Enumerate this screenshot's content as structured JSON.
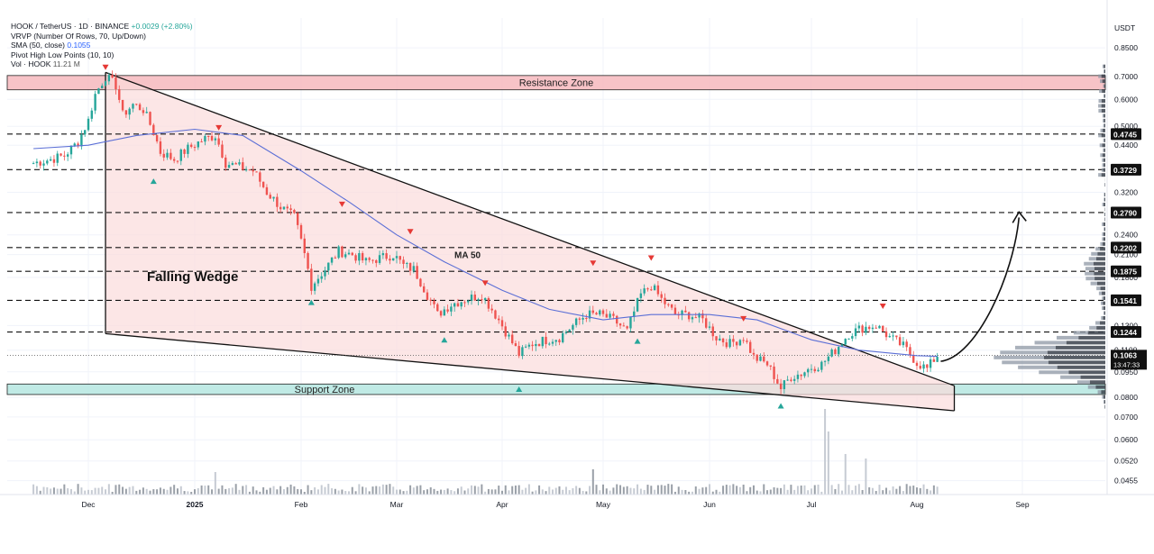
{
  "header": {
    "symbol": "HOOK / TetherUS · 1D · BINANCE",
    "change": "+0.0029 (+2.80%)",
    "vrvp": "VRVP (Number Of Rows, 70, Up/Down)",
    "sma_label": "SMA (50, close)",
    "sma_value": "0.1055",
    "pivot": "Pivot High Low Points (10, 10)",
    "vol_label": "Vol · HOOK",
    "vol_value": "11.21 M",
    "currency": "USDT"
  },
  "chart_data": {
    "type": "line",
    "title": "",
    "pair": "HOOK / TetherUS",
    "interval": "1D",
    "exchange": "BINANCE",
    "y_scale": "log",
    "ylim": [
      0.042,
      0.95
    ],
    "y_ticks": [
      "0.8500",
      "0.7000",
      "0.6000",
      "0.5000",
      "0.4400",
      "0.3200",
      "0.2400",
      "0.2100",
      "0.1800",
      "0.1300",
      "0.1100",
      "0.0950",
      "0.0800",
      "0.0700",
      "0.0600",
      "0.0520",
      "0.0455"
    ],
    "x_ticks": [
      "Dec",
      "2025",
      "Feb",
      "Mar",
      "Apr",
      "May",
      "Jun",
      "Jul",
      "Aug",
      "Sep"
    ],
    "x_range": [
      "2024-11-15",
      "2025-09-25"
    ],
    "price_series": [
      [
        "2024-11-15",
        0.39
      ],
      [
        "2024-11-20",
        0.4
      ],
      [
        "2024-11-24",
        0.41
      ],
      [
        "2024-11-28",
        0.45
      ],
      [
        "2024-12-01",
        0.52
      ],
      [
        "2024-12-03",
        0.62
      ],
      [
        "2024-12-06",
        0.7
      ],
      [
        "2024-12-09",
        0.66
      ],
      [
        "2024-12-11",
        0.54
      ],
      [
        "2024-12-14",
        0.58
      ],
      [
        "2024-12-17",
        0.56
      ],
      [
        "2024-12-20",
        0.48
      ],
      [
        "2024-12-22",
        0.42
      ],
      [
        "2024-12-26",
        0.4
      ],
      [
        "2024-12-30",
        0.43
      ],
      [
        "2025-01-04",
        0.46
      ],
      [
        "2025-01-07",
        0.47
      ],
      [
        "2025-01-10",
        0.39
      ],
      [
        "2025-01-14",
        0.38
      ],
      [
        "2025-01-18",
        0.37
      ],
      [
        "2025-01-22",
        0.32
      ],
      [
        "2025-01-26",
        0.29
      ],
      [
        "2025-01-30",
        0.27
      ],
      [
        "2025-02-02",
        0.21
      ],
      [
        "2025-02-04",
        0.17
      ],
      [
        "2025-02-08",
        0.19
      ],
      [
        "2025-02-12",
        0.215
      ],
      [
        "2025-02-16",
        0.21
      ],
      [
        "2025-02-20",
        0.2
      ],
      [
        "2025-02-24",
        0.205
      ],
      [
        "2025-02-28",
        0.21
      ],
      [
        "2025-03-03",
        0.195
      ],
      [
        "2025-03-06",
        0.19
      ],
      [
        "2025-03-10",
        0.16
      ],
      [
        "2025-03-13",
        0.14
      ],
      [
        "2025-03-17",
        0.15
      ],
      [
        "2025-03-21",
        0.155
      ],
      [
        "2025-03-26",
        0.16
      ],
      [
        "2025-03-30",
        0.14
      ],
      [
        "2025-04-03",
        0.12
      ],
      [
        "2025-04-06",
        0.107
      ],
      [
        "2025-04-10",
        0.115
      ],
      [
        "2025-04-14",
        0.118
      ],
      [
        "2025-04-18",
        0.12
      ],
      [
        "2025-04-22",
        0.13
      ],
      [
        "2025-04-26",
        0.14
      ],
      [
        "2025-04-30",
        0.14
      ],
      [
        "2025-05-04",
        0.135
      ],
      [
        "2025-05-08",
        0.125
      ],
      [
        "2025-05-12",
        0.16
      ],
      [
        "2025-05-15",
        0.17
      ],
      [
        "2025-05-18",
        0.155
      ],
      [
        "2025-05-22",
        0.14
      ],
      [
        "2025-05-26",
        0.14
      ],
      [
        "2025-05-30",
        0.135
      ],
      [
        "2025-06-03",
        0.12
      ],
      [
        "2025-06-07",
        0.115
      ],
      [
        "2025-06-11",
        0.12
      ],
      [
        "2025-06-14",
        0.105
      ],
      [
        "2025-06-18",
        0.1
      ],
      [
        "2025-06-22",
        0.085
      ],
      [
        "2025-06-25",
        0.092
      ],
      [
        "2025-06-28",
        0.094
      ],
      [
        "2025-07-01",
        0.098
      ],
      [
        "2025-07-04",
        0.1
      ],
      [
        "2025-07-08",
        0.11
      ],
      [
        "2025-07-12",
        0.123
      ],
      [
        "2025-07-16",
        0.128
      ],
      [
        "2025-07-20",
        0.13
      ],
      [
        "2025-07-24",
        0.12
      ],
      [
        "2025-07-28",
        0.113
      ],
      [
        "2025-08-01",
        0.101
      ],
      [
        "2025-08-04",
        0.097
      ],
      [
        "2025-08-07",
        0.1063
      ]
    ],
    "series": [
      {
        "name": "MA 50",
        "values": [
          [
            "2024-11-15",
            0.43
          ],
          [
            "2024-12-01",
            0.44
          ],
          [
            "2024-12-15",
            0.47
          ],
          [
            "2025-01-01",
            0.49
          ],
          [
            "2025-01-15",
            0.47
          ],
          [
            "2025-02-01",
            0.37
          ],
          [
            "2025-02-15",
            0.3
          ],
          [
            "2025-03-01",
            0.24
          ],
          [
            "2025-03-15",
            0.2
          ],
          [
            "2025-04-01",
            0.165
          ],
          [
            "2025-04-15",
            0.145
          ],
          [
            "2025-05-01",
            0.135
          ],
          [
            "2025-05-15",
            0.14
          ],
          [
            "2025-06-01",
            0.14
          ],
          [
            "2025-06-15",
            0.135
          ],
          [
            "2025-07-01",
            0.118
          ],
          [
            "2025-07-15",
            0.11
          ],
          [
            "2025-08-01",
            0.106
          ],
          [
            "2025-08-07",
            0.1055
          ]
        ]
      }
    ],
    "horizontal_levels": [
      0.4745,
      0.3729,
      0.279,
      0.2202,
      0.1875,
      0.1541,
      0.1244
    ],
    "last_price": "0.1063",
    "countdown": "13:47:33",
    "zones": [
      {
        "label": "Resistance Zone",
        "from": 0.64,
        "to": 0.705,
        "color": "#f6b8bd"
      },
      {
        "label": "Support Zone",
        "from": 0.0815,
        "to": 0.0875,
        "color": "#b5e6e1"
      }
    ],
    "wedge": {
      "label": "Falling Wedge",
      "upper": [
        [
          "2024-12-06",
          0.72
        ],
        [
          "2025-08-12",
          0.0865
        ]
      ],
      "lower": [
        [
          "2024-12-06",
          0.123
        ],
        [
          "2025-08-12",
          0.073
        ]
      ]
    },
    "projection": {
      "from": [
        "2025-08-08",
        0.102
      ],
      "to": [
        "2025-08-31",
        0.28
      ]
    },
    "pivot_highs": [
      [
        "2024-12-06",
        0.745
      ],
      [
        "2025-01-08",
        0.495
      ],
      [
        "2025-02-13",
        0.295
      ],
      [
        "2025-03-05",
        0.245
      ],
      [
        "2025-03-27",
        0.173
      ],
      [
        "2025-04-28",
        0.198
      ],
      [
        "2025-05-15",
        0.205
      ],
      [
        "2025-06-11",
        0.136
      ],
      [
        "2025-07-22",
        0.148
      ]
    ],
    "pivot_lows": [
      [
        "2024-12-20",
        0.345
      ],
      [
        "2025-02-04",
        0.152
      ],
      [
        "2025-03-15",
        0.118
      ],
      [
        "2025-04-06",
        0.0845
      ],
      [
        "2025-05-11",
        0.117
      ],
      [
        "2025-06-22",
        0.0755
      ]
    ],
    "annotations": [
      "MA 50",
      "Falling Wedge",
      "Resistance Zone",
      "Support Zone"
    ],
    "volume_profile": true,
    "grid": true
  },
  "colors": {
    "up": "#26a69a",
    "down": "#ef5350",
    "ink": "#131722",
    "ma": "#5b6fd6",
    "wedge_fill": "#fbdcdc",
    "resistance": "#f6b8bd",
    "support": "#b5e6e1",
    "vp_up": "#8d97a4",
    "vp_down": "#3a414b",
    "last": "#131722"
  }
}
